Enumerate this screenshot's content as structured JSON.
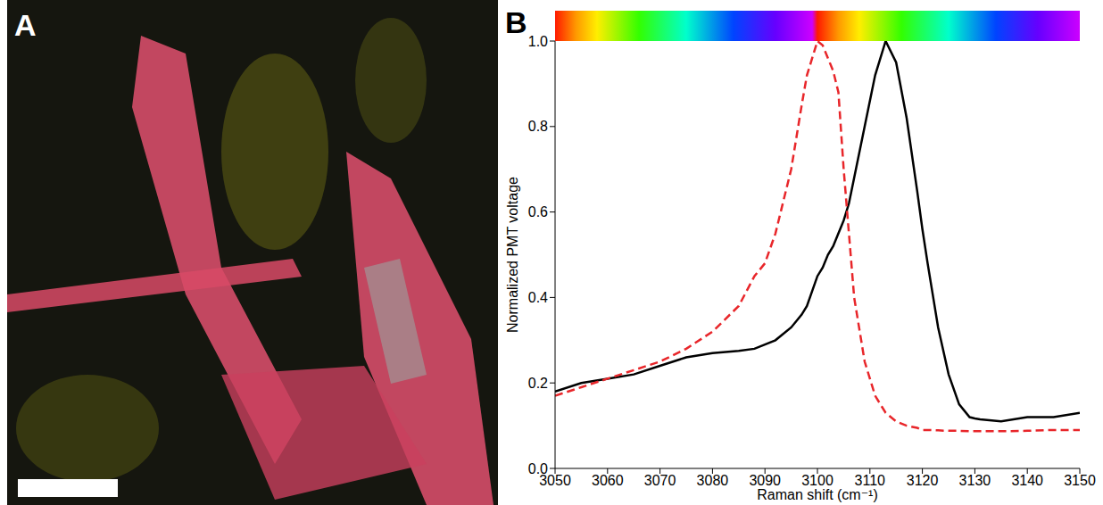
{
  "image_panel": {
    "label": "A"
  },
  "chart_data": {
    "type": "line",
    "panel_label": "B",
    "x_label": "Raman shift (cm⁻¹)",
    "y_label": "Normalized PMT voltage",
    "x": [
      3050,
      3055,
      3060,
      3065,
      3070,
      3075,
      3080,
      3085,
      3088,
      3090,
      3092,
      3095,
      3097,
      3098,
      3100,
      3101,
      3102,
      3103,
      3104,
      3105,
      3106,
      3107,
      3109,
      3111,
      3113,
      3115,
      3117,
      3119,
      3120,
      3121,
      3123,
      3125,
      3127,
      3129,
      3130,
      3131,
      3135,
      3140,
      3145,
      3150
    ],
    "series": [
      {
        "color": "#000000",
        "line_style": "solid",
        "values": [
          0.18,
          0.2,
          0.21,
          0.22,
          0.24,
          0.26,
          0.27,
          0.275,
          0.28,
          0.29,
          0.3,
          0.33,
          0.36,
          0.38,
          0.45,
          0.47,
          0.5,
          0.52,
          0.55,
          0.58,
          0.62,
          0.68,
          0.8,
          0.92,
          1.0,
          0.95,
          0.82,
          0.65,
          0.56,
          0.48,
          0.33,
          0.22,
          0.15,
          0.12,
          0.117,
          0.115,
          0.11,
          0.12,
          0.12,
          0.13
        ]
      },
      {
        "color": "#e8262a",
        "line_style": "dashed",
        "values": [
          0.17,
          0.19,
          0.21,
          0.23,
          0.25,
          0.28,
          0.32,
          0.38,
          0.45,
          0.48,
          0.55,
          0.7,
          0.85,
          0.92,
          1.0,
          0.99,
          0.96,
          0.93,
          0.88,
          0.7,
          0.55,
          0.4,
          0.25,
          0.17,
          0.13,
          0.11,
          0.1,
          0.095,
          0.09,
          0.09,
          0.089,
          0.088,
          0.088,
          0.087,
          0.087,
          0.087,
          0.087,
          0.088,
          0.09,
          0.09
        ]
      }
    ],
    "xlim": [
      3050,
      3150
    ],
    "xticks": [
      3050,
      3060,
      3070,
      3080,
      3090,
      3100,
      3110,
      3120,
      3130,
      3140,
      3150
    ],
    "ylim": [
      0,
      1
    ],
    "yticks": [
      {
        "value": 0,
        "label": "0.0"
      },
      0.2,
      0.4,
      0.6,
      0.8,
      {
        "value": 1,
        "label": "1.0"
      }
    ]
  }
}
